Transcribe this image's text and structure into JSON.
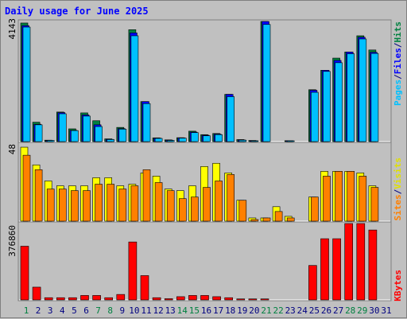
{
  "title": "Daily usage for June 2025",
  "legend": {
    "pages": "Pages",
    "files": "Files",
    "hits": "Hits",
    "sites": "Sites",
    "visits": "Visits",
    "kbytes": "KBytes",
    "sep": "/"
  },
  "colors": {
    "hits": "#008040",
    "files": "#0000ff",
    "pages": "#00c0ff",
    "visits": "#ffff00",
    "sites": "#ff8000",
    "kbytes": "#ff0000",
    "weekend": "#008040",
    "weekday": "#000080",
    "background": "#c0c0c0"
  },
  "chart_data": [
    {
      "type": "bar",
      "title": "Daily usage for June 2025",
      "max_label": "4143",
      "ylim": [
        0,
        4143
      ],
      "categories": [
        "1",
        "2",
        "3",
        "4",
        "5",
        "6",
        "7",
        "8",
        "9",
        "10",
        "11",
        "12",
        "13",
        "14",
        "15",
        "16",
        "17",
        "18",
        "19",
        "20",
        "21",
        "22",
        "23",
        "24",
        "25",
        "26",
        "27",
        "28",
        "29",
        "30",
        "31"
      ],
      "weekend_days": [
        "1",
        "7",
        "8",
        "14",
        "15",
        "21",
        "22",
        "28",
        "29"
      ],
      "series": [
        {
          "name": "Hits",
          "values": [
            4090,
            670,
            50,
            1020,
            440,
            990,
            720,
            95,
            490,
            3860,
            1380,
            130,
            60,
            135,
            360,
            240,
            280,
            1630,
            70,
            40,
            4143,
            0,
            30,
            0,
            1790,
            2460,
            2880,
            3090,
            3650,
            3160,
            0
          ]
        },
        {
          "name": "Files",
          "values": [
            4000,
            600,
            40,
            1000,
            390,
            920,
            580,
            80,
            450,
            3750,
            1380,
            120,
            50,
            130,
            330,
            220,
            260,
            1630,
            60,
            30,
            4143,
            0,
            30,
            0,
            1770,
            2460,
            2800,
            3090,
            3600,
            3080,
            0
          ]
        },
        {
          "name": "Pages",
          "values": [
            3950,
            580,
            40,
            960,
            380,
            880,
            520,
            70,
            430,
            3650,
            1310,
            110,
            40,
            120,
            310,
            200,
            240,
            1550,
            50,
            25,
            4040,
            0,
            20,
            0,
            1700,
            2420,
            2720,
            3030,
            3540,
            3040,
            0
          ]
        }
      ]
    },
    {
      "type": "bar",
      "max_label": "48",
      "ylim": [
        0,
        48
      ],
      "categories": [
        "1",
        "2",
        "3",
        "4",
        "5",
        "6",
        "7",
        "8",
        "9",
        "10",
        "11",
        "12",
        "13",
        "14",
        "15",
        "16",
        "17",
        "18",
        "19",
        "20",
        "21",
        "22",
        "23",
        "24",
        "25",
        "26",
        "27",
        "28",
        "29",
        "30",
        "31"
      ],
      "series": [
        {
          "name": "Visits",
          "values": [
            46,
            35,
            25,
            22,
            22,
            22,
            27,
            27,
            22,
            23,
            30,
            28,
            20,
            19,
            22,
            34,
            36,
            30,
            13,
            2,
            2,
            9,
            3,
            0,
            15,
            31,
            31,
            31,
            30,
            22,
            0
          ]
        },
        {
          "name": "Sites",
          "values": [
            41,
            32,
            20,
            20,
            19,
            19,
            23,
            23,
            20,
            22,
            32,
            24,
            19,
            14,
            15,
            21,
            25,
            29,
            13,
            1,
            2,
            6,
            2,
            0,
            15,
            28,
            31,
            31,
            28,
            21,
            0
          ]
        }
      ]
    },
    {
      "type": "bar",
      "max_label": "376860",
      "ylim": [
        0,
        376860
      ],
      "categories": [
        "1",
        "2",
        "3",
        "4",
        "5",
        "6",
        "7",
        "8",
        "9",
        "10",
        "11",
        "12",
        "13",
        "14",
        "15",
        "16",
        "17",
        "18",
        "19",
        "20",
        "21",
        "22",
        "23",
        "24",
        "25",
        "26",
        "27",
        "28",
        "29",
        "30",
        "31"
      ],
      "series": [
        {
          "name": "KBytes",
          "values": [
            265000,
            63000,
            11000,
            11000,
            11000,
            22000,
            22000,
            11000,
            27000,
            286000,
            120000,
            11000,
            6000,
            16000,
            22000,
            22000,
            16000,
            11000,
            5000,
            5000,
            5000,
            0,
            0,
            0,
            170000,
            302000,
            302000,
            376860,
            376860,
            345000,
            0
          ]
        }
      ]
    }
  ]
}
